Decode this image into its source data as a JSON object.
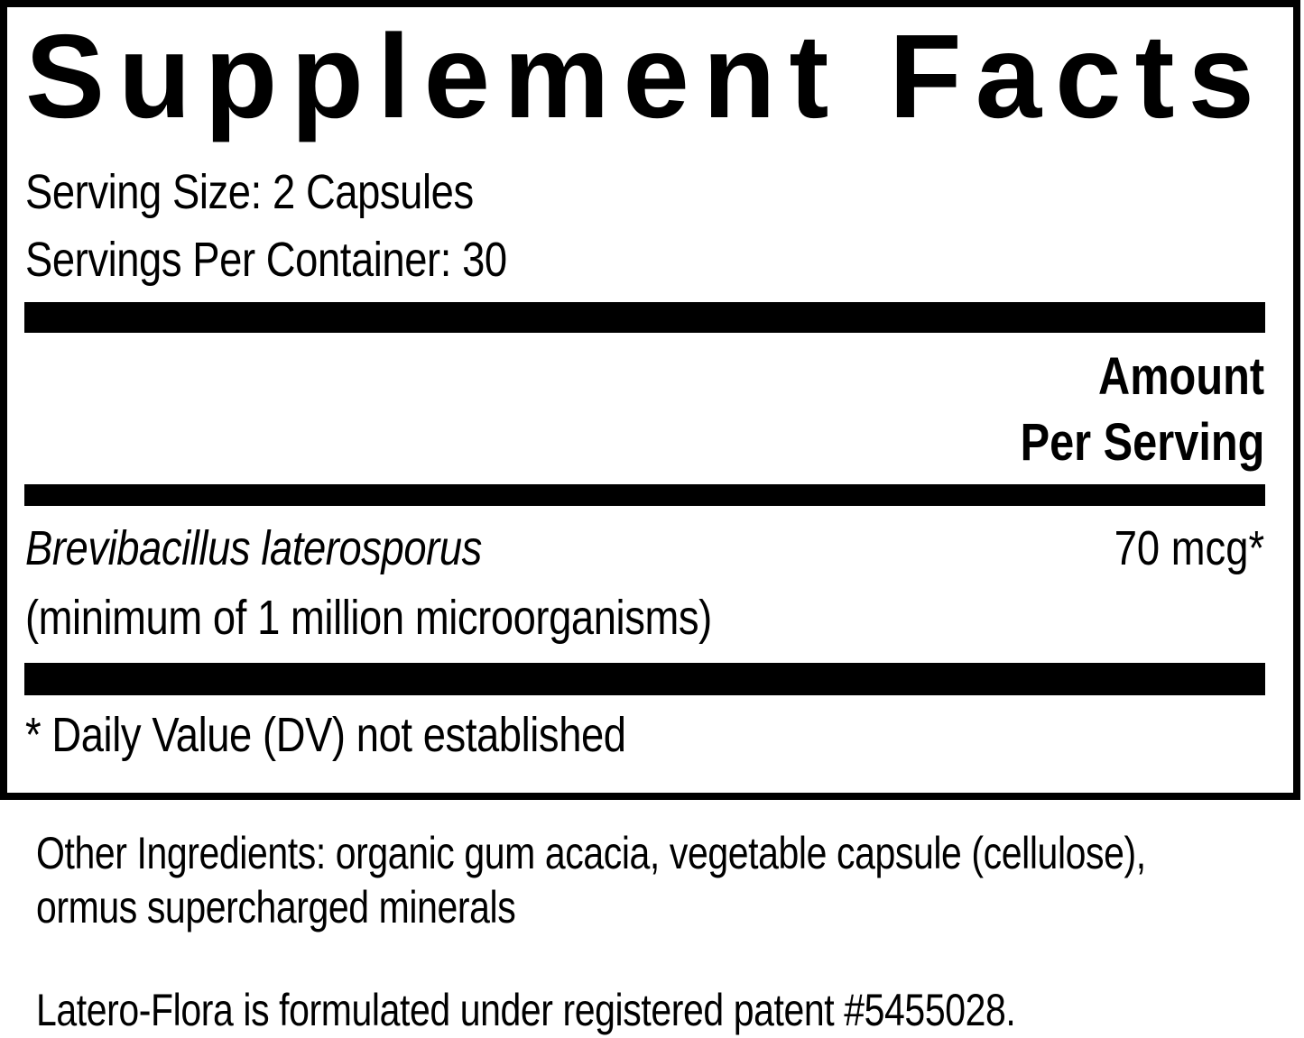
{
  "panel": {
    "title": "Supplement Facts",
    "serving_size": "Serving Size: 2 Capsules",
    "servings_per_container": "Servings Per Container: 30",
    "amount_header_line1": "Amount",
    "amount_header_line2": "Per Serving",
    "ingredients": [
      {
        "name": "Brevibacillus laterosporus",
        "note": "(minimum of 1 million microorganisms)",
        "amount": "70 mcg*"
      }
    ],
    "footnote": "* Daily Value (DV) not established"
  },
  "other_ingredients": {
    "line1": "Other Ingredients: organic gum acacia, vegetable capsule (cellulose),",
    "line2": "ormus supercharged minerals"
  },
  "patent_note": "Latero-Flora is formulated under registered patent #5455028."
}
